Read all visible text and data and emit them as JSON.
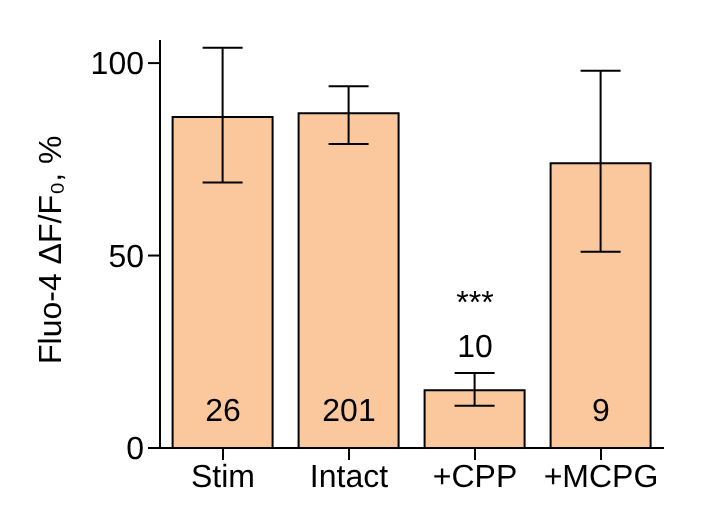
{
  "chart_data": {
    "type": "bar",
    "ylabel": "Fluo-4 ΔF/F₀, %",
    "categories": [
      "Stim",
      "Intact",
      "+CPP",
      "+MCPG"
    ],
    "values": [
      86,
      87,
      15,
      74
    ],
    "errors": [
      [
        69,
        104
      ],
      [
        79,
        94
      ],
      [
        11,
        19.5
      ],
      [
        51,
        98
      ]
    ],
    "color": "#fac89c",
    "ylim": [
      0,
      106
    ],
    "yticks": [
      0,
      50,
      100
    ],
    "grid": false,
    "legend": false,
    "annotations": [
      "26",
      "201",
      "10",
      "***",
      "9"
    ]
  }
}
